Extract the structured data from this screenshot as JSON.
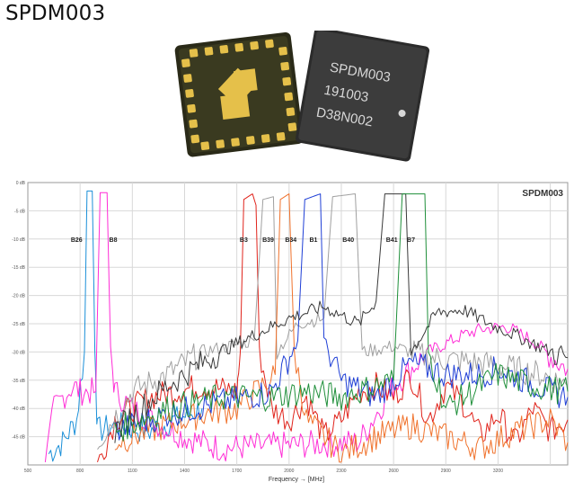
{
  "page": {
    "title": "SPDM003"
  },
  "product_photo": {
    "chip_marking_lines": [
      "SPDM003",
      "191003",
      "D38N002"
    ]
  },
  "chart_data": {
    "type": "line",
    "title": "SPDM003",
    "xlabel": "Frequency → [MHz]",
    "ylabel": "",
    "xlim": [
      500,
      3600
    ],
    "ylim": [
      -50,
      0
    ],
    "x_ticks": [
      "500",
      "800",
      "1100",
      "1400",
      "1700",
      "2000",
      "2300",
      "2600",
      "2900",
      "3200"
    ],
    "y_ticks": [
      "0 dB",
      "-5 dB",
      "-10 dB",
      "-15 dB",
      "-20 dB",
      "-25 dB",
      "-30 dB",
      "-35 dB",
      "-40 dB",
      "-45 dB"
    ],
    "grid": true,
    "band_labels": [
      {
        "text": "B26",
        "x": 780
      },
      {
        "text": "B8",
        "x": 990
      },
      {
        "text": "B3",
        "x": 1740
      },
      {
        "text": "B39",
        "x": 1880
      },
      {
        "text": "B34",
        "x": 2010
      },
      {
        "text": "B1",
        "x": 2140
      },
      {
        "text": "B40",
        "x": 2340
      },
      {
        "text": "B41",
        "x": 2590
      },
      {
        "text": "B7",
        "x": 2700
      }
    ],
    "series": [
      {
        "color": "#1a8fd8",
        "points": [
          [
            620,
            -48
          ],
          [
            700,
            -46
          ],
          [
            780,
            -42
          ],
          [
            825,
            -30
          ],
          [
            840,
            -1.5
          ],
          [
            870,
            -1.5
          ],
          [
            885,
            -30
          ],
          [
            900,
            -44
          ],
          [
            1000,
            -43
          ],
          [
            1200,
            -44
          ],
          [
            1500,
            -40
          ]
        ]
      },
      {
        "color": "#ff2cd6",
        "points": [
          [
            600,
            -50
          ],
          [
            650,
            -40
          ],
          [
            700,
            -38
          ],
          [
            760,
            -36
          ],
          [
            800,
            -37
          ],
          [
            890,
            -37
          ],
          [
            915,
            -1.8
          ],
          [
            955,
            -1.8
          ],
          [
            975,
            -30
          ],
          [
            1000,
            -37
          ],
          [
            1100,
            -40
          ],
          [
            1200,
            -42
          ],
          [
            1400,
            -45
          ],
          [
            1600,
            -47
          ],
          [
            2400,
            -46
          ],
          [
            2600,
            -36
          ],
          [
            2800,
            -30
          ],
          [
            3000,
            -27
          ],
          [
            3100,
            -26
          ],
          [
            3250,
            -25.5
          ],
          [
            3400,
            -28
          ],
          [
            3550,
            -32
          ],
          [
            3600,
            -33
          ]
        ]
      },
      {
        "color": "#e0231b",
        "points": [
          [
            900,
            -50
          ],
          [
            1000,
            -42
          ],
          [
            1200,
            -38
          ],
          [
            1500,
            -36
          ],
          [
            1700,
            -37
          ],
          [
            1720,
            -30
          ],
          [
            1740,
            -3
          ],
          [
            1790,
            -2
          ],
          [
            1810,
            -4
          ],
          [
            1830,
            -30
          ],
          [
            1900,
            -40
          ],
          [
            2000,
            -42
          ],
          [
            2100,
            -38
          ],
          [
            2200,
            -45
          ],
          [
            2300,
            -42
          ],
          [
            2400,
            -37
          ],
          [
            2500,
            -36
          ],
          [
            2600,
            -38
          ],
          [
            2700,
            -34
          ],
          [
            2800,
            -42
          ],
          [
            2900,
            -36
          ],
          [
            3000,
            -39
          ],
          [
            3100,
            -45
          ],
          [
            3200,
            -41
          ],
          [
            3300,
            -46
          ],
          [
            3400,
            -40
          ],
          [
            3500,
            -44
          ],
          [
            3600,
            -42
          ]
        ]
      },
      {
        "color": "#a0a0a0",
        "points": [
          [
            900,
            -46
          ],
          [
            1100,
            -37
          ],
          [
            1300,
            -34
          ],
          [
            1500,
            -30
          ],
          [
            1800,
            -28
          ],
          [
            1850,
            -3
          ],
          [
            1910,
            -2.5
          ],
          [
            1930,
            -30
          ],
          [
            2050,
            -25
          ],
          [
            2200,
            -24
          ],
          [
            2250,
            -2.5
          ],
          [
            2380,
            -2
          ],
          [
            2420,
            -30
          ],
          [
            2600,
            -29
          ],
          [
            2800,
            -31
          ],
          [
            3100,
            -32
          ],
          [
            3300,
            -33
          ],
          [
            3450,
            -34
          ],
          [
            3600,
            -36
          ]
        ]
      },
      {
        "color": "#f0722c",
        "points": [
          [
            1000,
            -46
          ],
          [
            1300,
            -43
          ],
          [
            1500,
            -41
          ],
          [
            1700,
            -40
          ],
          [
            1920,
            -34
          ],
          [
            1950,
            -3
          ],
          [
            2000,
            -2
          ],
          [
            2030,
            -30
          ],
          [
            2100,
            -42
          ],
          [
            2300,
            -48
          ],
          [
            2500,
            -45
          ],
          [
            2700,
            -43
          ],
          [
            2900,
            -45
          ],
          [
            3100,
            -47
          ],
          [
            3300,
            -44
          ],
          [
            3500,
            -42
          ],
          [
            3600,
            -46
          ]
        ]
      },
      {
        "color": "#1f3fd6",
        "points": [
          [
            1000,
            -44
          ],
          [
            1300,
            -41
          ],
          [
            1600,
            -39
          ],
          [
            1900,
            -37
          ],
          [
            2050,
            -28
          ],
          [
            2090,
            -3
          ],
          [
            2180,
            -2
          ],
          [
            2200,
            -28
          ],
          [
            2300,
            -35
          ],
          [
            2500,
            -38
          ],
          [
            2700,
            -32
          ],
          [
            2900,
            -34
          ],
          [
            3100,
            -34
          ],
          [
            3200,
            -33
          ],
          [
            3350,
            -35
          ],
          [
            3500,
            -37
          ],
          [
            3600,
            -38
          ]
        ]
      },
      {
        "color": "#3a3a3a",
        "points": [
          [
            1000,
            -44
          ],
          [
            1300,
            -36
          ],
          [
            1600,
            -30
          ],
          [
            1800,
            -27
          ],
          [
            2000,
            -24
          ],
          [
            2200,
            -22
          ],
          [
            2400,
            -25
          ],
          [
            2500,
            -21
          ],
          [
            2550,
            -2
          ],
          [
            2670,
            -2
          ],
          [
            2700,
            -30
          ],
          [
            2850,
            -23
          ],
          [
            3000,
            -22.5
          ],
          [
            3150,
            -25
          ],
          [
            3300,
            -27
          ],
          [
            3500,
            -30
          ],
          [
            3600,
            -31
          ]
        ]
      },
      {
        "color": "#1f8f3a",
        "points": [
          [
            1000,
            -44
          ],
          [
            1300,
            -40
          ],
          [
            1600,
            -38
          ],
          [
            1900,
            -38
          ],
          [
            2100,
            -37
          ],
          [
            2300,
            -38
          ],
          [
            2600,
            -35
          ],
          [
            2650,
            -2
          ],
          [
            2780,
            -2
          ],
          [
            2800,
            -30
          ],
          [
            2900,
            -40
          ],
          [
            3000,
            -38
          ],
          [
            3200,
            -34
          ],
          [
            3400,
            -36
          ],
          [
            3600,
            -37
          ]
        ]
      }
    ]
  },
  "colors": {
    "grid": "#d8d8d8",
    "frame": "#9a9a9a"
  }
}
